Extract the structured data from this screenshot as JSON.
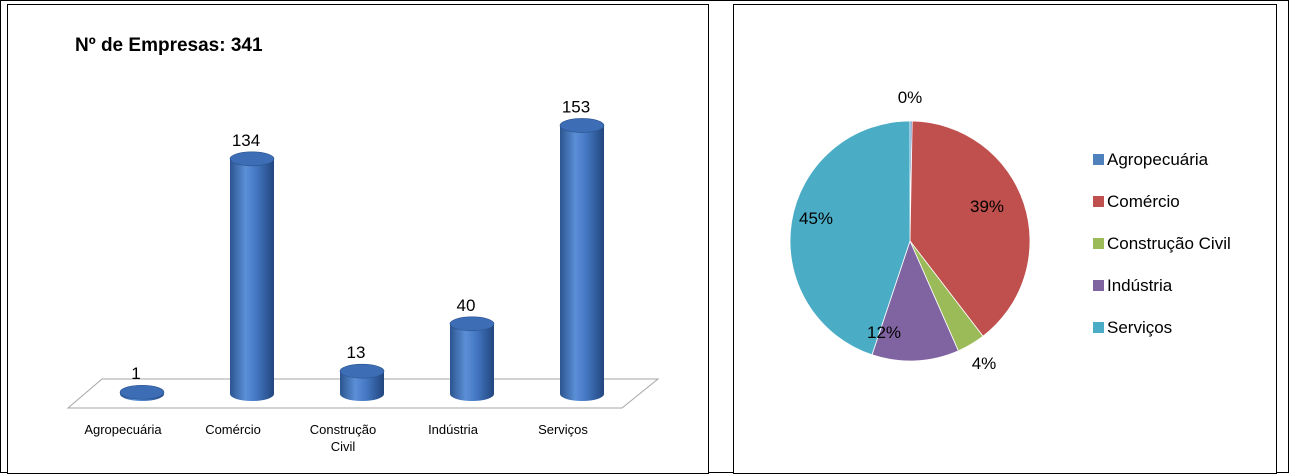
{
  "chart_data": [
    {
      "type": "bar",
      "title": "Nº de Empresas:  341",
      "categories": [
        "Agropecuária",
        "Comércio",
        "Construção Civil",
        "Indústria",
        "Serviços"
      ],
      "category_lines": [
        [
          "Agropecuária"
        ],
        [
          "Comércio"
        ],
        [
          "Construção",
          "Civil"
        ],
        [
          "Indústria"
        ],
        [
          "Serviços"
        ]
      ],
      "values": [
        1,
        134,
        13,
        40,
        153
      ],
      "data_labels": [
        "1",
        "134",
        "13",
        "40",
        "153"
      ],
      "bar_color": "#3f72b8",
      "style": "3d-cylinder",
      "grid": false
    },
    {
      "type": "pie",
      "categories": [
        "Agropecuária",
        "Comércio",
        "Construção Civil",
        "Indústria",
        "Serviços"
      ],
      "values": [
        1,
        134,
        13,
        40,
        153
      ],
      "data_labels": [
        "0%",
        "39%",
        "4%",
        "12%",
        "45%"
      ],
      "colors": [
        "#4f81bd",
        "#c0504d",
        "#9bbb59",
        "#8064a2",
        "#4bacc6"
      ],
      "legend": "right"
    }
  ]
}
